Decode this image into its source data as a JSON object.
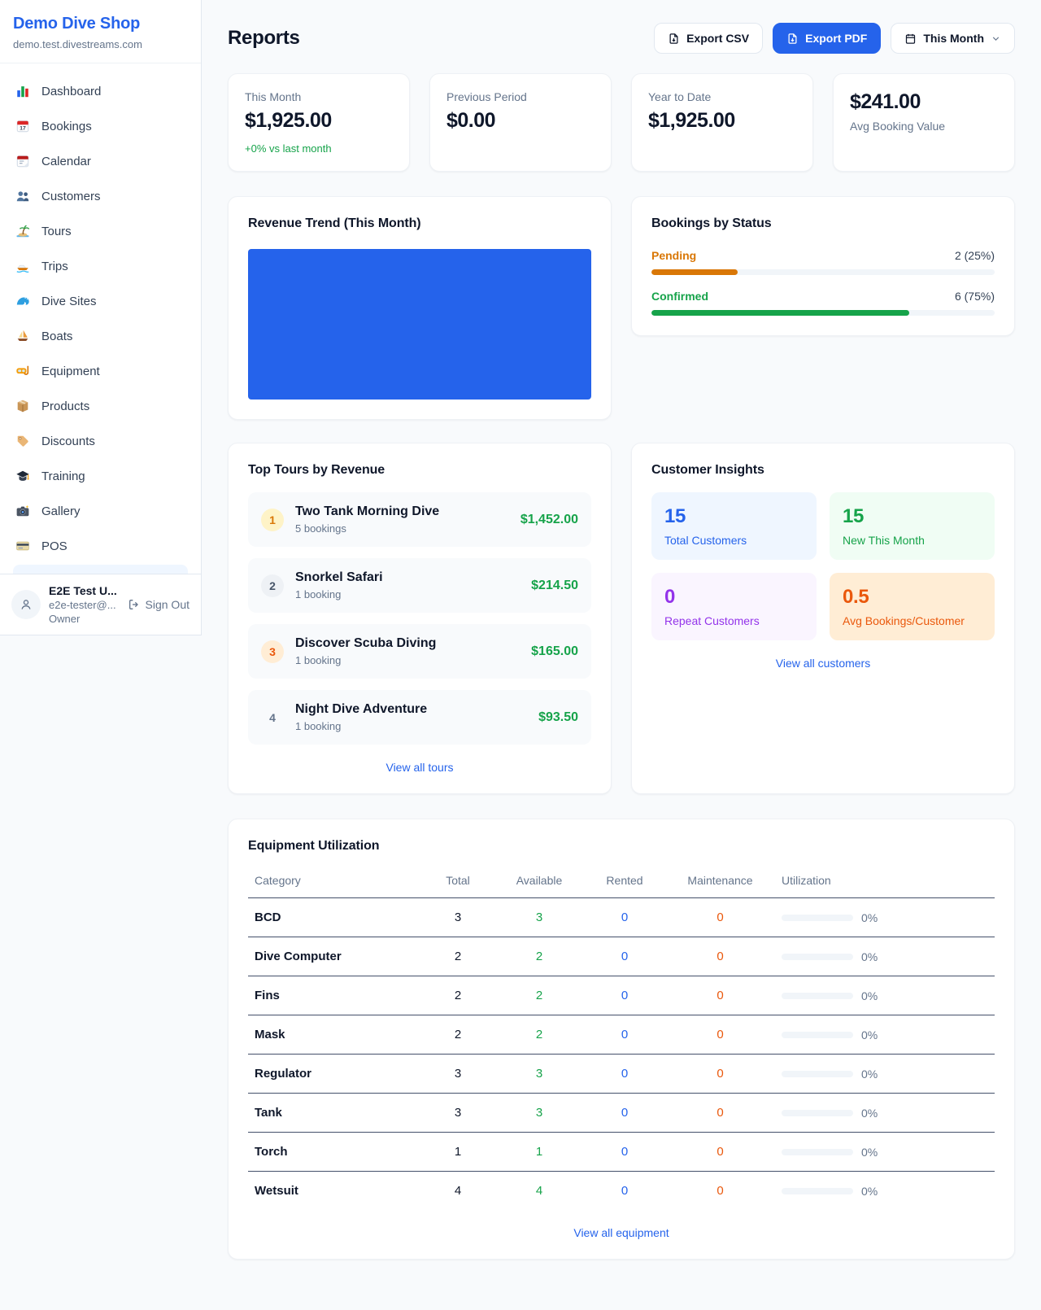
{
  "colors": {
    "accent": "#2563eb",
    "green": "#16a34a",
    "orange": "#d97706",
    "orange_deep": "#ea580c",
    "purple": "#9333ea"
  },
  "sidebar": {
    "title": "Demo Dive Shop",
    "subdomain": "demo.test.divestreams.com",
    "items": [
      {
        "icon": "bar-chart",
        "label": "Dashboard"
      },
      {
        "icon": "calendar-date",
        "label": "Bookings"
      },
      {
        "icon": "tear-off-calendar",
        "label": "Calendar"
      },
      {
        "icon": "people",
        "label": "Customers"
      },
      {
        "icon": "desert-island",
        "label": "Tours"
      },
      {
        "icon": "speedboat",
        "label": "Trips"
      },
      {
        "icon": "wave",
        "label": "Dive Sites"
      },
      {
        "icon": "sailboat",
        "label": "Boats"
      },
      {
        "icon": "diving-mask",
        "label": "Equipment"
      },
      {
        "icon": "package",
        "label": "Products"
      },
      {
        "icon": "tag",
        "label": "Discounts"
      },
      {
        "icon": "graduation-cap",
        "label": "Training"
      },
      {
        "icon": "camera",
        "label": "Gallery"
      },
      {
        "icon": "credit-card",
        "label": "POS"
      }
    ],
    "user": {
      "name": "E2E Test U...",
      "email": "e2e-tester@...",
      "role": "Owner",
      "sign_out": "Sign Out"
    }
  },
  "header": {
    "title": "Reports",
    "export_csv": "Export CSV",
    "export_pdf": "Export PDF",
    "period": "This Month"
  },
  "stats": [
    {
      "label": "This Month",
      "value": "$1,925.00",
      "delta": "+0% vs last month"
    },
    {
      "label": "Previous Period",
      "value": "$0.00"
    },
    {
      "label": "Year to Date",
      "value": "$1,925.00"
    },
    {
      "label": "Avg Booking Value",
      "value": "$241.00"
    }
  ],
  "revenue_trend": {
    "title": "Revenue Trend (This Month)",
    "bar_color": "#2563eb"
  },
  "bookings_by_status": {
    "title": "Bookings by Status",
    "rows": [
      {
        "label": "Pending",
        "value": "2 (25%)",
        "width": "25%",
        "color": "#d97706"
      },
      {
        "label": "Confirmed",
        "value": "6 (75%)",
        "width": "75%",
        "color": "#16a34a"
      }
    ]
  },
  "top_tours": {
    "title": "Top Tours by Revenue",
    "view_all": "View all tours",
    "rows": [
      {
        "rank": "1",
        "name": "Two Tank Morning Dive",
        "bookings": "5 bookings",
        "revenue": "$1,452.00",
        "badge_bg": "#fef3c7",
        "badge_color": "#d97706"
      },
      {
        "rank": "2",
        "name": "Snorkel Safari",
        "bookings": "1 booking",
        "revenue": "$214.50",
        "badge_bg": "#eef1f5",
        "badge_color": "#475569"
      },
      {
        "rank": "3",
        "name": "Discover Scuba Diving",
        "bookings": "1 booking",
        "revenue": "$165.00",
        "badge_bg": "#ffedd5",
        "badge_color": "#ea580c"
      },
      {
        "rank": "4",
        "name": "Night Dive Adventure",
        "bookings": "1 booking",
        "revenue": "$93.50",
        "badge_bg": "transparent",
        "badge_color": "#64748b"
      }
    ]
  },
  "customer_insights": {
    "title": "Customer Insights",
    "view_all": "View all customers",
    "tiles": [
      {
        "value": "15",
        "label": "Total Customers",
        "color": "#2563eb",
        "bg": "#eff6ff"
      },
      {
        "value": "15",
        "label": "New This Month",
        "color": "#16a34a",
        "bg": "#f0fdf4"
      },
      {
        "value": "0",
        "label": "Repeat Customers",
        "color": "#9333ea",
        "bg": "#faf5ff"
      },
      {
        "value": "0.5",
        "label": "Avg Bookings/Customer",
        "color": "#ea580c",
        "bg": "#ffedd5"
      }
    ]
  },
  "equipment": {
    "title": "Equipment Utilization",
    "view_all": "View all equipment",
    "columns": [
      "Category",
      "Total",
      "Available",
      "Rented",
      "Maintenance",
      "Utilization"
    ],
    "rows": [
      {
        "category": "BCD",
        "total": "3",
        "available": "3",
        "rented": "0",
        "maintenance": "0",
        "utilization": "0%",
        "width": "0%"
      },
      {
        "category": "Dive Computer",
        "total": "2",
        "available": "2",
        "rented": "0",
        "maintenance": "0",
        "utilization": "0%",
        "width": "0%"
      },
      {
        "category": "Fins",
        "total": "2",
        "available": "2",
        "rented": "0",
        "maintenance": "0",
        "utilization": "0%",
        "width": "0%"
      },
      {
        "category": "Mask",
        "total": "2",
        "available": "2",
        "rented": "0",
        "maintenance": "0",
        "utilization": "0%",
        "width": "0%"
      },
      {
        "category": "Regulator",
        "total": "3",
        "available": "3",
        "rented": "0",
        "maintenance": "0",
        "utilization": "0%",
        "width": "0%"
      },
      {
        "category": "Tank",
        "total": "3",
        "available": "3",
        "rented": "0",
        "maintenance": "0",
        "utilization": "0%",
        "width": "0%"
      },
      {
        "category": "Torch",
        "total": "1",
        "available": "1",
        "rented": "0",
        "maintenance": "0",
        "utilization": "0%",
        "width": "0%"
      },
      {
        "category": "Wetsuit",
        "total": "4",
        "available": "4",
        "rented": "0",
        "maintenance": "0",
        "utilization": "0%",
        "width": "0%"
      }
    ]
  }
}
